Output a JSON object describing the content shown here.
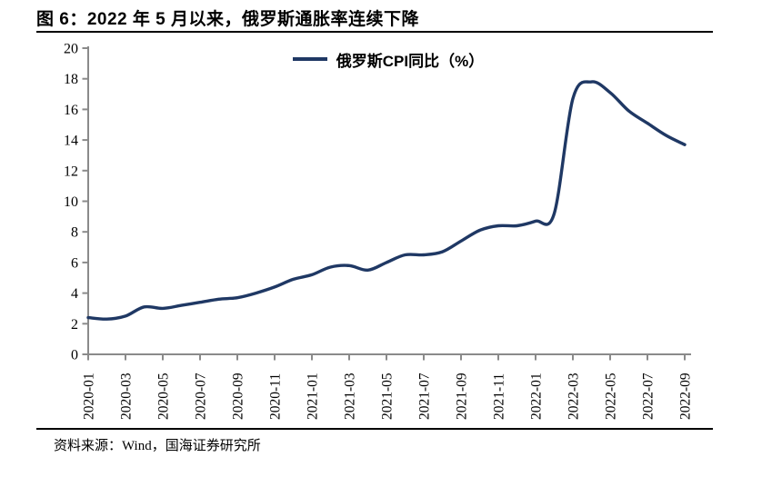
{
  "header": {
    "title": "图 6：2022 年 5 月以来，俄罗斯通胀率连续下降"
  },
  "footer": {
    "source": "资料来源：Wind，国海证券研究所"
  },
  "chart_data": {
    "type": "line",
    "title": "图 6：2022 年 5 月以来，俄罗斯通胀率连续下降",
    "legend_position": "top-center",
    "grid": false,
    "background": "#ffffff",
    "axis_color": "#8a8a8a",
    "tick_label_color": "#000000",
    "x": [
      "2020-01",
      "2020-02",
      "2020-03",
      "2020-04",
      "2020-05",
      "2020-06",
      "2020-07",
      "2020-08",
      "2020-09",
      "2020-10",
      "2020-11",
      "2020-12",
      "2021-01",
      "2021-02",
      "2021-03",
      "2021-04",
      "2021-05",
      "2021-06",
      "2021-07",
      "2021-08",
      "2021-09",
      "2021-10",
      "2021-11",
      "2021-12",
      "2022-01",
      "2022-02",
      "2022-03",
      "2022-04",
      "2022-05",
      "2022-06",
      "2022-07",
      "2022-08",
      "2022-09"
    ],
    "xtick_labels": [
      "2020-01",
      "2020-03",
      "2020-05",
      "2020-07",
      "2020-09",
      "2020-11",
      "2021-01",
      "2021-03",
      "2021-05",
      "2021-07",
      "2021-09",
      "2021-11",
      "2022-01",
      "2022-03",
      "2022-05",
      "2022-07",
      "2022-09"
    ],
    "series": [
      {
        "name": "俄罗斯CPI同比（%）",
        "color": "#1f3864",
        "values": [
          2.4,
          2.3,
          2.5,
          3.1,
          3.0,
          3.2,
          3.4,
          3.6,
          3.7,
          4.0,
          4.4,
          4.9,
          5.2,
          5.7,
          5.8,
          5.5,
          6.0,
          6.5,
          6.5,
          6.7,
          7.4,
          8.1,
          8.4,
          8.4,
          8.7,
          9.2,
          16.7,
          17.8,
          17.1,
          15.9,
          15.1,
          14.3,
          13.7
        ]
      }
    ],
    "ylim": [
      0,
      20
    ],
    "ytick_step": 2,
    "yticks": [
      0,
      2,
      4,
      6,
      8,
      10,
      12,
      14,
      16,
      18,
      20
    ],
    "xlabel": "",
    "ylabel": ""
  }
}
